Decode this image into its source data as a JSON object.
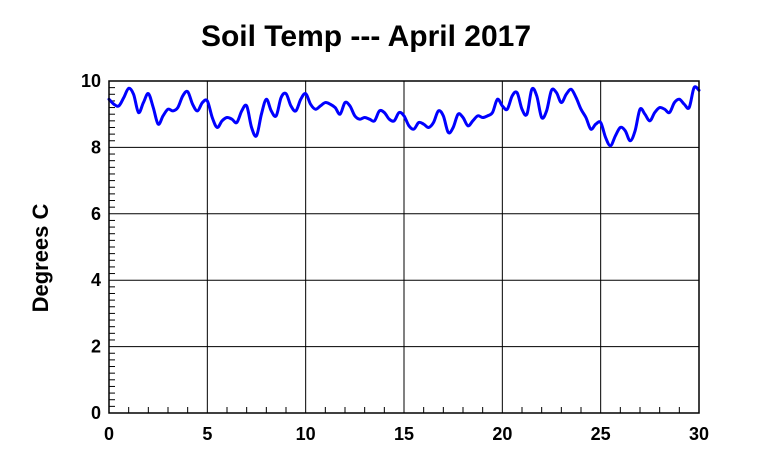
{
  "chart_data": {
    "type": "line",
    "title": "Soil Temp --- April 2017",
    "xlabel": "",
    "ylabel": "Degrees C",
    "xlim": [
      0,
      30
    ],
    "ylim": [
      0,
      10
    ],
    "x_ticks": [
      "0",
      "5",
      "10",
      "15",
      "20",
      "25",
      "30"
    ],
    "y_ticks": [
      "0",
      "2",
      "4",
      "6",
      "8",
      "10"
    ],
    "grid": true,
    "line_color": "#0000ff",
    "series": [
      {
        "x": [
          0,
          0.25,
          0.5,
          0.75,
          1.0,
          1.25,
          1.5,
          1.75,
          2.0,
          2.25,
          2.5,
          2.75,
          3.0,
          3.25,
          3.5,
          3.75,
          4.0,
          4.25,
          4.5,
          4.75,
          5.0,
          5.25,
          5.5,
          5.75,
          6.0,
          6.25,
          6.5,
          6.75,
          7.0,
          7.25,
          7.5,
          7.75,
          8.0,
          8.25,
          8.5,
          8.75,
          9.0,
          9.25,
          9.5,
          9.75,
          10.0,
          10.25,
          10.5,
          10.75,
          11.0,
          11.25,
          11.5,
          11.75,
          12.0,
          12.25,
          12.5,
          12.75,
          13.0,
          13.25,
          13.5,
          13.75,
          14.0,
          14.25,
          14.5,
          14.75,
          15.0,
          15.25,
          15.5,
          15.75,
          16.0,
          16.25,
          16.5,
          16.75,
          17.0,
          17.25,
          17.5,
          17.75,
          18.0,
          18.25,
          18.5,
          18.75,
          19.0,
          19.25,
          19.5,
          19.75,
          20.0,
          20.25,
          20.5,
          20.75,
          21.0,
          21.25,
          21.5,
          21.75,
          22.0,
          22.25,
          22.5,
          22.75,
          23.0,
          23.25,
          23.5,
          23.75,
          24.0,
          24.25,
          24.5,
          24.75,
          25.0,
          25.25,
          25.5,
          25.75,
          26.0,
          26.25,
          26.5,
          26.75,
          27.0,
          27.25,
          27.5,
          27.75,
          28.0,
          28.25,
          28.5,
          28.75,
          29.0,
          29.25,
          29.5,
          29.75,
          30.0
        ],
        "values": [
          9.45,
          9.3,
          9.25,
          9.5,
          9.78,
          9.6,
          9.05,
          9.35,
          9.62,
          9.2,
          8.7,
          8.95,
          9.15,
          9.1,
          9.2,
          9.55,
          9.68,
          9.3,
          9.1,
          9.35,
          9.4,
          8.9,
          8.6,
          8.8,
          8.9,
          8.85,
          8.75,
          9.1,
          9.25,
          8.6,
          8.35,
          9.0,
          9.45,
          9.1,
          8.95,
          9.5,
          9.62,
          9.25,
          9.1,
          9.45,
          9.62,
          9.3,
          9.15,
          9.25,
          9.35,
          9.3,
          9.2,
          9.0,
          9.35,
          9.25,
          8.95,
          8.85,
          8.9,
          8.85,
          8.8,
          9.1,
          9.05,
          8.85,
          8.8,
          9.05,
          8.95,
          8.65,
          8.55,
          8.75,
          8.7,
          8.6,
          8.75,
          9.1,
          8.95,
          8.45,
          8.6,
          9.0,
          8.9,
          8.65,
          8.8,
          8.95,
          8.9,
          8.95,
          9.05,
          9.45,
          9.25,
          9.15,
          9.55,
          9.65,
          9.15,
          9.0,
          9.75,
          9.55,
          8.9,
          9.1,
          9.72,
          9.65,
          9.35,
          9.6,
          9.75,
          9.5,
          9.15,
          8.9,
          8.55,
          8.7,
          8.75,
          8.3,
          8.05,
          8.35,
          8.6,
          8.5,
          8.2,
          8.5,
          9.15,
          9.0,
          8.8,
          9.05,
          9.2,
          9.15,
          9.05,
          9.35,
          9.45,
          9.3,
          9.2,
          9.8,
          9.72
        ]
      }
    ]
  }
}
